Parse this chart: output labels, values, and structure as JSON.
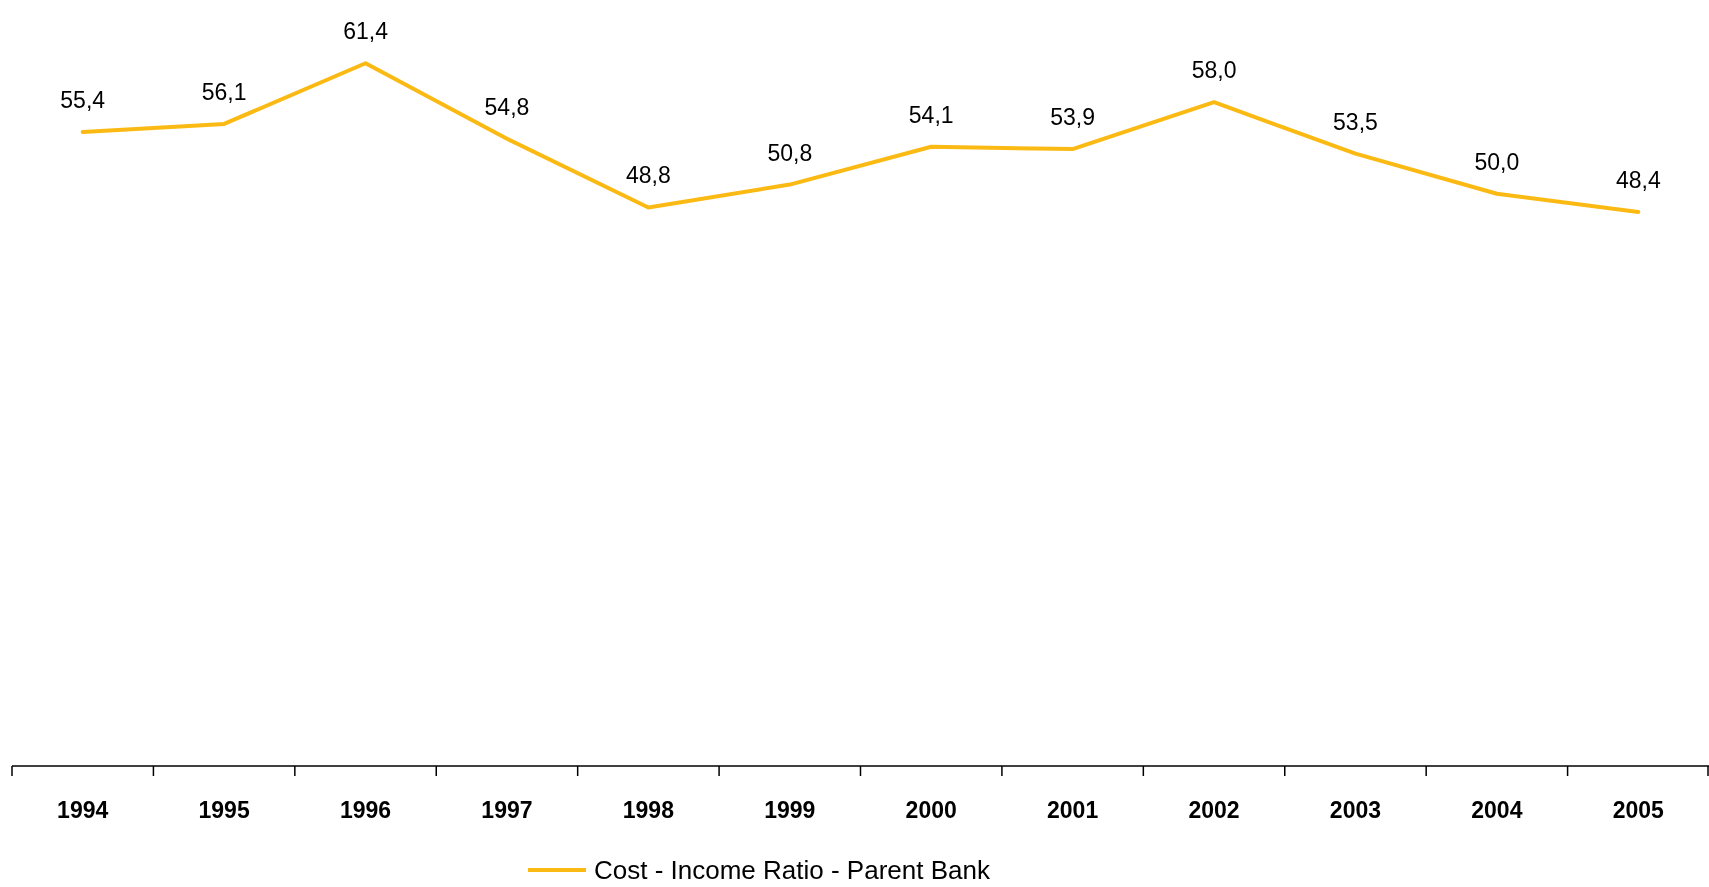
{
  "chart_data": {
    "type": "line",
    "categories": [
      "1994",
      "1995",
      "1996",
      "1997",
      "1998",
      "1999",
      "2000",
      "2001",
      "2002",
      "2003",
      "2004",
      "2005"
    ],
    "series": [
      {
        "name": "Cost - Income Ratio - Parent Bank",
        "color": "#fbb913",
        "values": [
          55.4,
          56.1,
          61.4,
          54.8,
          48.8,
          50.8,
          54.1,
          53.9,
          58.0,
          53.5,
          50.0,
          48.4
        ],
        "value_labels": [
          "55,4",
          "56,1",
          "61,4",
          "54,8",
          "48,8",
          "50,8",
          "54,1",
          "53,9",
          "58,0",
          "53,5",
          "50,0",
          "48,4"
        ]
      }
    ],
    "tick_labels": "x",
    "legend": "bottom",
    "marker": "none"
  }
}
